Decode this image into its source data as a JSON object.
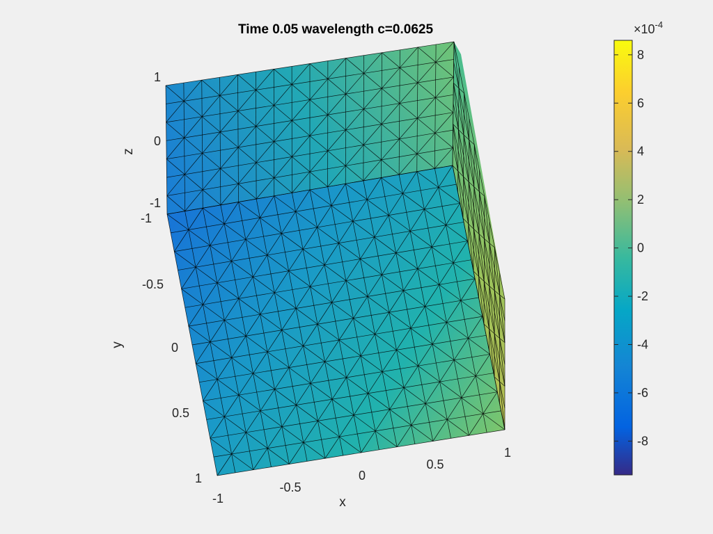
{
  "chart_data": {
    "type": "surface",
    "title": "Time 0.05 wavelength c=0.0625",
    "xlabel": "x",
    "ylabel": "y",
    "zlabel": "z",
    "x_ticks": [
      "-1",
      "-0.5",
      "0",
      "0.5",
      "1"
    ],
    "y_ticks": [
      "-1",
      "-0.5",
      "0",
      "0.5",
      "1"
    ],
    "z_ticks": [
      "-1",
      "0",
      "1"
    ],
    "xlim": [
      -1,
      1
    ],
    "ylim": [
      -1,
      1
    ],
    "zlim": [
      -1,
      1
    ],
    "colorbar": {
      "multiplier": "×10",
      "exponent": "-4",
      "ticks": [
        "8",
        "6",
        "4",
        "2",
        "0",
        "-2",
        "-4",
        "-6",
        "-8"
      ],
      "tick_values": [
        8,
        6,
        4,
        2,
        0,
        -2,
        -4,
        -6,
        -8
      ],
      "range": [
        -9.4,
        8.6
      ],
      "colormap": "parula"
    },
    "mesh": "triangulated",
    "shading": "faceted"
  }
}
